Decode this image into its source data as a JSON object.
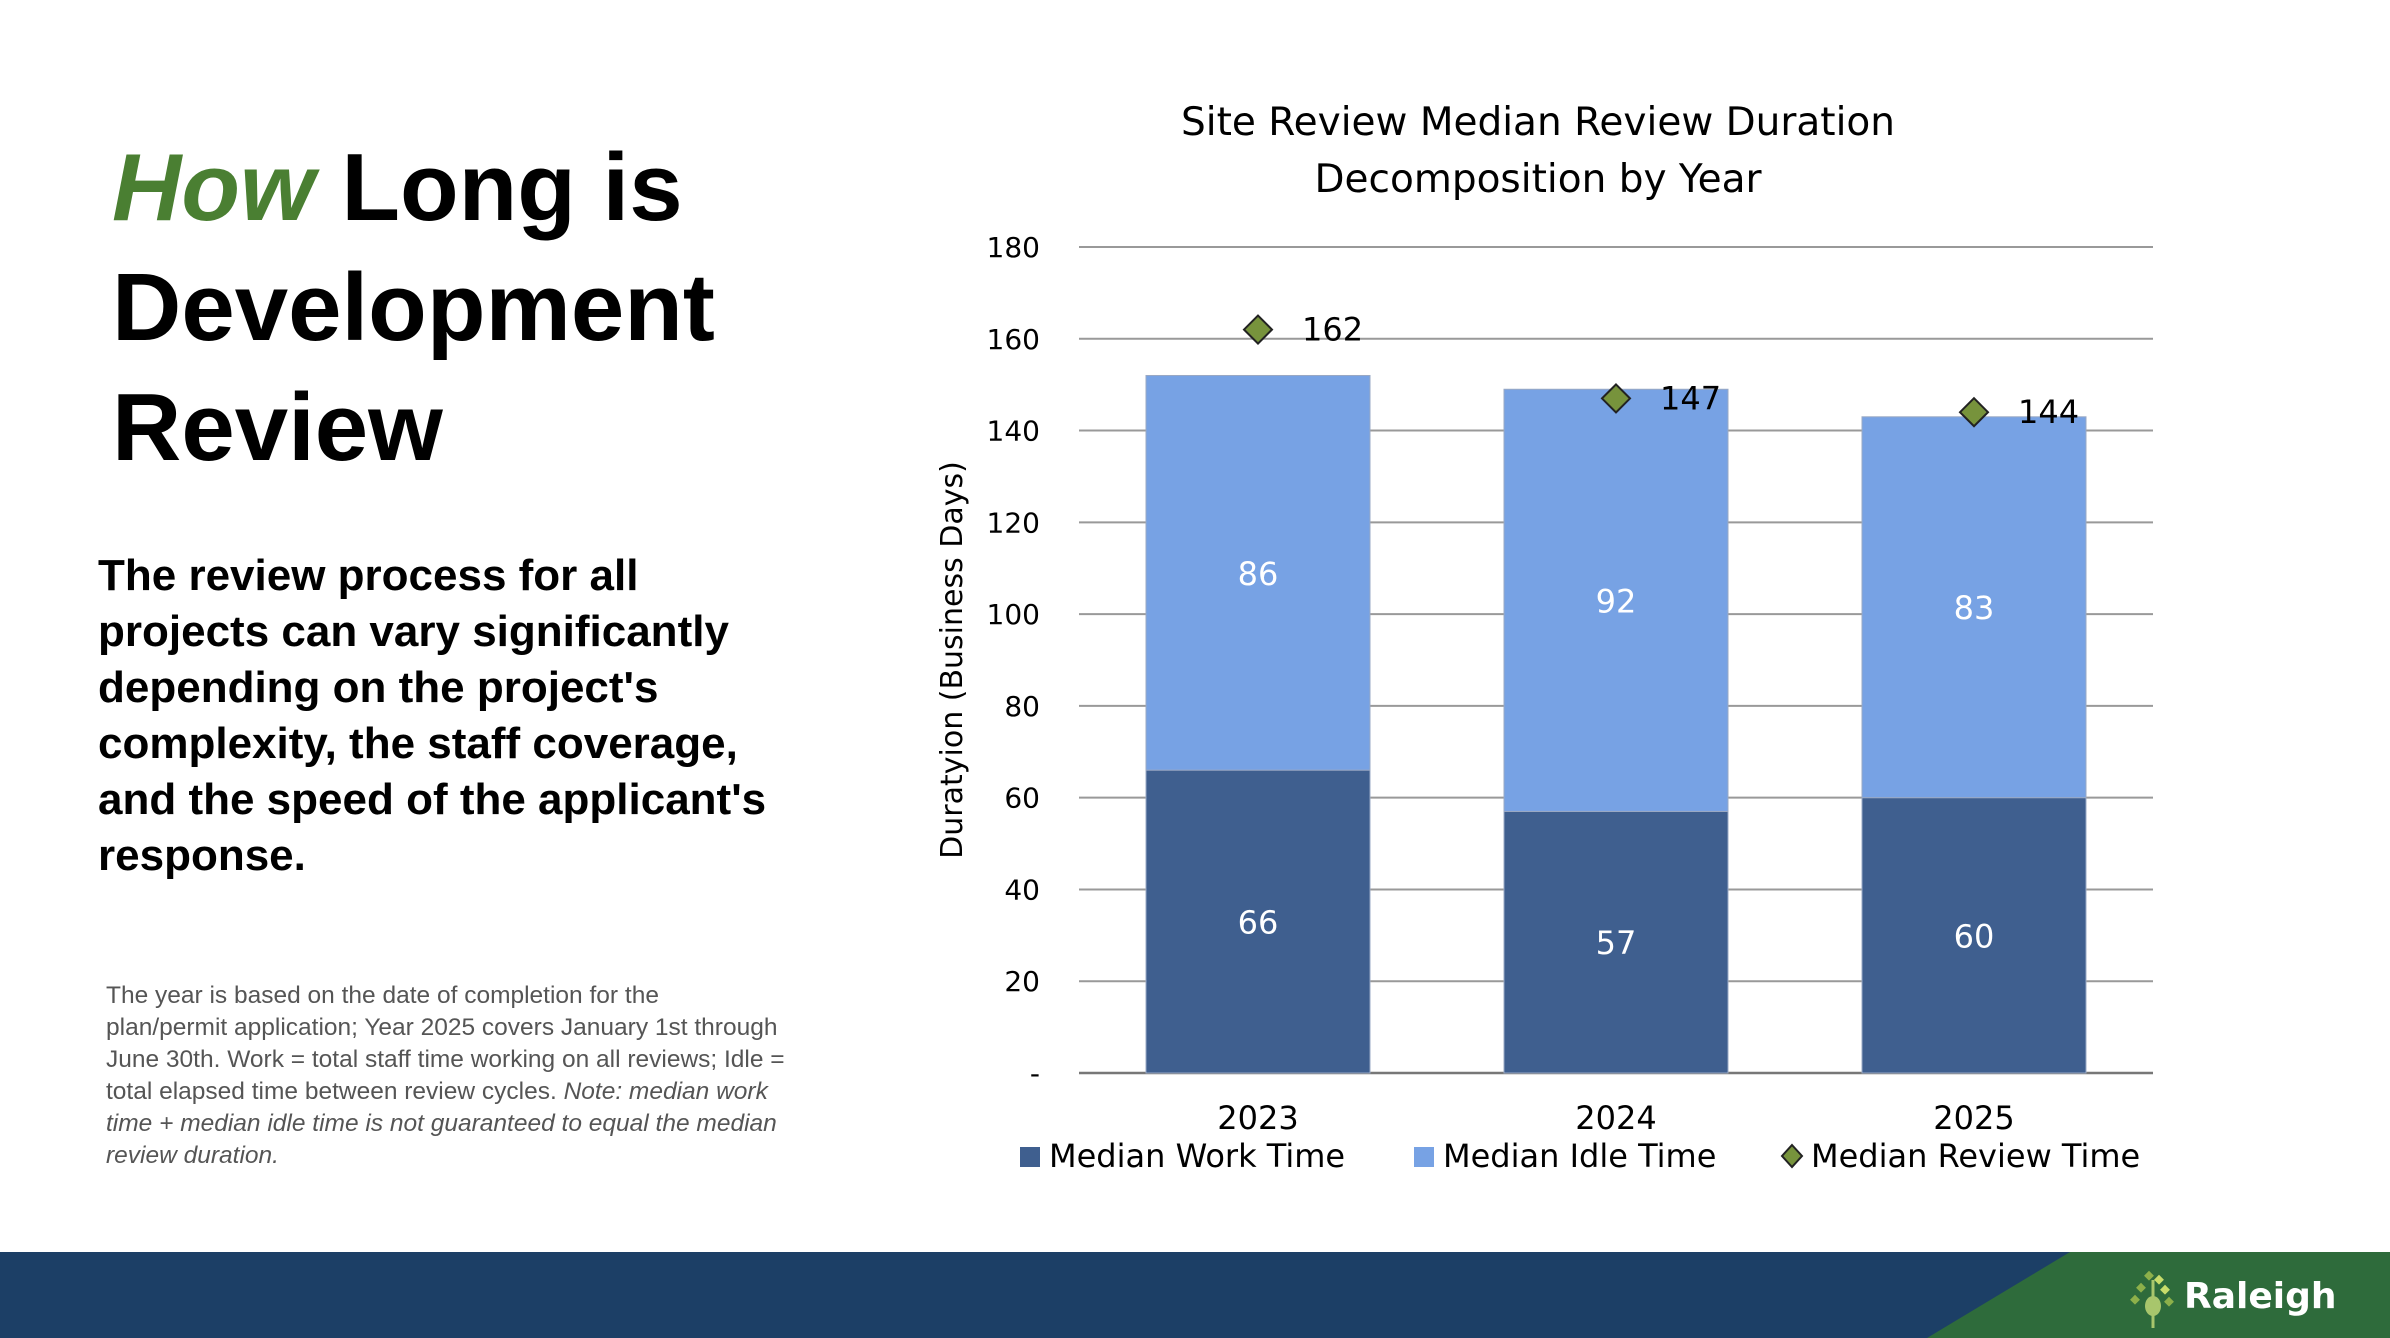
{
  "heading": {
    "accent": "How",
    "rest_line1": " Long is",
    "line2": "Development",
    "line3": "Review"
  },
  "body_text": "The review process for all projects can vary significantly depending on the project's complexity, the staff coverage, and the speed of the applicant's response.",
  "note": {
    "plain": "The year is based on the date of completion for the plan/permit application; Year 2025 covers January 1st through June 30th. Work = total staff time working on all reviews; Idle = total elapsed time between review cycles. ",
    "italic": "Note: median work time + median idle time is not guaranteed to equal the median review duration."
  },
  "footer": {
    "logo_text": "Raleigh"
  },
  "colors": {
    "work": "#3f5f8f",
    "idle": "#77a2e4",
    "marker": "#77933c",
    "footer_blue": "#1c3f66",
    "footer_green": "#2e6b3b",
    "accent": "#4a7f32"
  },
  "chart_data": {
    "type": "bar",
    "stacked": true,
    "title": [
      "Site Review Median Review Duration",
      "Decomposition by Year"
    ],
    "xlabel": "",
    "ylabel": "Duratyion (Business Days)",
    "ylim": [
      0,
      180
    ],
    "yticks": [
      0,
      20,
      40,
      60,
      80,
      100,
      120,
      140,
      160,
      180
    ],
    "ytick_labels": [
      "-",
      "20",
      "40",
      "60",
      "80",
      "100",
      "120",
      "140",
      "160",
      "180"
    ],
    "grid": true,
    "categories": [
      "2023",
      "2024",
      "2025"
    ],
    "series": [
      {
        "name": "Median Work Time",
        "type": "bar",
        "values": [
          66,
          57,
          60
        ]
      },
      {
        "name": "Median Idle Time",
        "type": "bar",
        "values": [
          86,
          92,
          83
        ]
      },
      {
        "name": "Median Review Time",
        "type": "marker",
        "values": [
          162,
          147,
          144
        ]
      }
    ],
    "legend_position": "bottom"
  }
}
